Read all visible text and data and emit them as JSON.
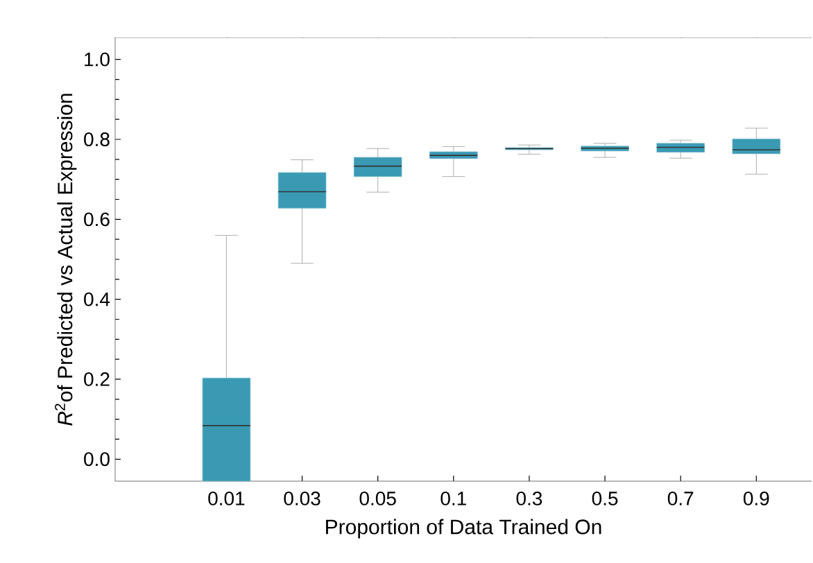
{
  "chart_data": {
    "type": "box",
    "xlabel": "Proportion of Data Trained On",
    "ylabel": "*R*$^{2}$of Predicted vs Actual Expression",
    "categories": [
      "0.01",
      "0.03",
      "0.05",
      "0.1",
      "0.3",
      "0.5",
      "0.7",
      "0.9"
    ],
    "color": "#3a9ab4",
    "boxes": [
      {
        "low": -0.055,
        "q1": -0.055,
        "median": 0.084,
        "q3": 0.203,
        "high": 0.56
      },
      {
        "low": 0.49,
        "q1": 0.628,
        "median": 0.669,
        "q3": 0.717,
        "high": 0.749
      },
      {
        "low": 0.668,
        "q1": 0.707,
        "median": 0.733,
        "q3": 0.755,
        "high": 0.777
      },
      {
        "low": 0.707,
        "q1": 0.752,
        "median": 0.76,
        "q3": 0.769,
        "high": 0.782
      },
      {
        "low": 0.763,
        "q1": 0.774,
        "median": 0.777,
        "q3": 0.779,
        "high": 0.786
      },
      {
        "low": 0.755,
        "q1": 0.771,
        "median": 0.778,
        "q3": 0.783,
        "high": 0.79
      },
      {
        "low": 0.753,
        "q1": 0.768,
        "median": 0.78,
        "q3": 0.79,
        "high": 0.798
      },
      {
        "low": 0.713,
        "q1": 0.764,
        "median": 0.774,
        "q3": 0.801,
        "high": 0.828
      }
    ],
    "ylim": [
      -0.055,
      1.055
    ],
    "yticks": [
      {
        "value": 0,
        "label": "0.0"
      },
      0.2,
      0.4,
      0.6,
      0.8,
      {
        "value": 1,
        "label": "1.0"
      }
    ]
  }
}
